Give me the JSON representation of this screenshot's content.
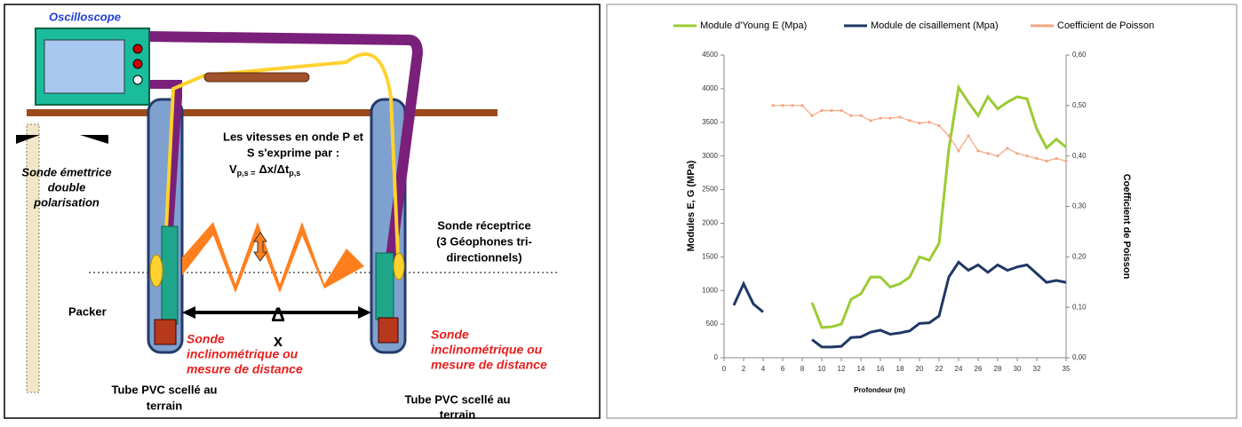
{
  "diagram": {
    "oscilloscope": "Oscilloscope",
    "equation_lines": [
      "Les vitesses en onde P et",
      "S s'exprime par :"
    ],
    "formula": {
      "v": "V",
      "v_sub": "p,s =",
      "ratio": "Δx/Δt",
      "t_sub": "p,s"
    },
    "emitter": [
      "Sonde émettrice",
      "double",
      "polarisation"
    ],
    "receiver": [
      "Sonde réceptrice",
      "(3 Géophones tri-",
      "directionnels)"
    ],
    "packer": "Packer",
    "delta": "Δ",
    "delta_x": "x",
    "probe_left": [
      "Sonde",
      "inclinométrique ou",
      "mesure de distance"
    ],
    "probe_right": [
      "Sonde",
      "inclinométrique ou",
      "mesure de distance"
    ],
    "tube_left": [
      "Tube PVC scellé au",
      "terrain"
    ],
    "tube_right": [
      "Tube PVC scellé au",
      "terrain"
    ]
  },
  "chart_data": {
    "type": "line",
    "x_label": "Profondeur (m)",
    "y_label": "Modules E, G (MPa)",
    "y2_label": "Coefficient de Poisson",
    "x": [
      1,
      2,
      3,
      4,
      5,
      6,
      7,
      8,
      9,
      10,
      11,
      12,
      13,
      14,
      15,
      16,
      17,
      18,
      19,
      20,
      21,
      22,
      23,
      24,
      25,
      26,
      27,
      28,
      29,
      30,
      31,
      32,
      33,
      34,
      35
    ],
    "xlim": [
      0,
      35
    ],
    "xticks": [
      0,
      2,
      4,
      6,
      8,
      10,
      12,
      14,
      16,
      18,
      20,
      22,
      24,
      26,
      28,
      30,
      32,
      35
    ],
    "ylim": [
      0,
      4500
    ],
    "yticks": [
      0,
      500,
      1000,
      1500,
      2000,
      2500,
      3000,
      3500,
      4000,
      4500
    ],
    "y2lim": [
      0,
      0.6
    ],
    "y2ticks": [
      {
        "value": 0,
        "label": "0,00"
      },
      {
        "value": 0.1,
        "label": "0,10"
      },
      {
        "value": 0.2,
        "label": "0,20"
      },
      {
        "value": 0.3,
        "label": "0,30"
      },
      {
        "value": 0.4,
        "label": "0,40"
      },
      {
        "value": 0.5,
        "label": "0,50"
      },
      {
        "value": 0.6,
        "label": "0,60"
      }
    ],
    "legend": "top",
    "series": [
      {
        "name": "Module d'Young E (Mpa)",
        "color": "#99cc33",
        "values": [
          null,
          null,
          null,
          null,
          null,
          null,
          null,
          null,
          820,
          450,
          460,
          500,
          870,
          950,
          1200,
          1200,
          1050,
          1100,
          1200,
          1500,
          1450,
          1700,
          3100,
          4020,
          3800,
          3600,
          3880,
          3700,
          3800,
          3880,
          3850,
          3400,
          3120,
          3250,
          3130
        ]
      },
      {
        "name": "Module de cisaillement (Mpa)",
        "color": "#1f3864",
        "values": [
          780,
          1100,
          800,
          680,
          null,
          null,
          null,
          null,
          270,
          160,
          160,
          170,
          300,
          310,
          380,
          410,
          350,
          370,
          400,
          510,
          520,
          620,
          1200,
          1420,
          1300,
          1380,
          1270,
          1380,
          1300,
          1350,
          1380,
          1250,
          1120,
          1150,
          1120
        ]
      },
      {
        "name": "Coefficient de Poisson",
        "color": "#f4a582",
        "axis": "y2",
        "values": [
          null,
          null,
          null,
          null,
          0.5,
          0.5,
          0.5,
          0.5,
          0.48,
          0.49,
          0.49,
          0.49,
          0.48,
          0.48,
          0.47,
          0.475,
          0.475,
          0.477,
          0.47,
          0.465,
          0.467,
          0.46,
          0.44,
          0.41,
          0.44,
          0.41,
          0.405,
          0.4,
          0.415,
          0.405,
          0.4,
          0.395,
          0.39,
          0.395,
          0.39
        ]
      }
    ]
  }
}
